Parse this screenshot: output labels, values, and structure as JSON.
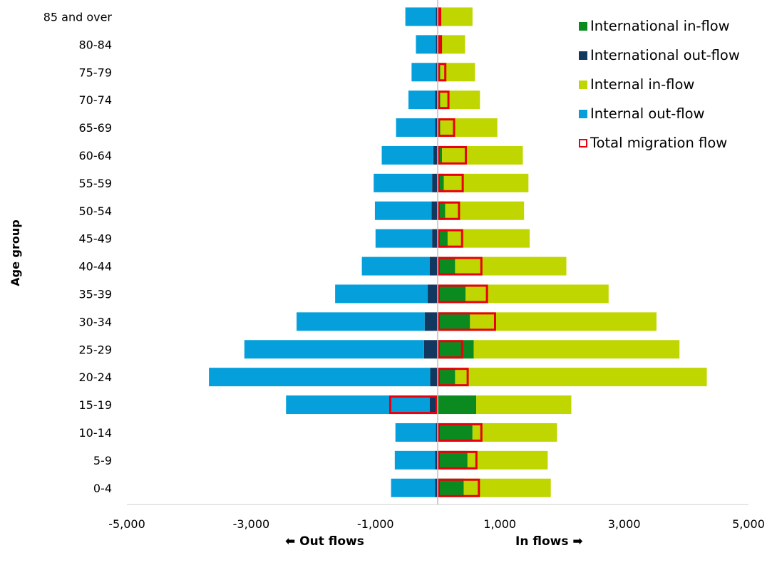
{
  "chart_data": {
    "type": "bar",
    "orientation": "horizontal",
    "ylabel": "Age group",
    "categories": [
      "85 and over",
      "80-84",
      "75-79",
      "70-74",
      "65-69",
      "60-64",
      "55-59",
      "50-54",
      "45-49",
      "40-44",
      "35-39",
      "30-34",
      "25-29",
      "20-24",
      "15-19",
      "10-14",
      "5-9",
      "0-4"
    ],
    "xlim": [
      -5000,
      5000
    ],
    "xticks": [
      "-5,000",
      "-3,000",
      "-1,000",
      "1,000",
      "3,000",
      "5,000"
    ],
    "xtick_values": [
      -5000,
      -3000,
      -1000,
      1000,
      3000,
      5000
    ],
    "out_flows_label": "⬅ Out flows",
    "in_flows_label": "In flows ➡",
    "legend_position": "top-right",
    "series": [
      {
        "name": "International in-flow",
        "color": "#0b8a1f",
        "values": [
          30,
          40,
          40,
          40,
          40,
          70,
          100,
          120,
          160,
          280,
          450,
          520,
          580,
          280,
          620,
          560,
          480,
          420
        ]
      },
      {
        "name": "International out-flow",
        "color": "#13385f",
        "values": [
          -30,
          -30,
          -30,
          -40,
          -40,
          -70,
          -90,
          -100,
          -90,
          -130,
          -160,
          -210,
          -220,
          -120,
          -130,
          -30,
          -40,
          -40
        ]
      },
      {
        "name": "Internal in-flow",
        "color": "#bfd600",
        "values": [
          530,
          400,
          560,
          640,
          920,
          1300,
          1360,
          1270,
          1320,
          1790,
          2300,
          3000,
          3310,
          4050,
          1530,
          1360,
          1290,
          1400
        ]
      },
      {
        "name": "Internal out-flow",
        "color": "#05a0dc",
        "values": [
          -490,
          -320,
          -390,
          -430,
          -630,
          -830,
          -940,
          -910,
          -910,
          -1090,
          -1490,
          -2060,
          -2890,
          -3560,
          -2310,
          -650,
          -650,
          -710
        ]
      },
      {
        "name": "Total migration flow",
        "color": "#e8000c",
        "values": [
          50,
          70,
          140,
          190,
          280,
          470,
          420,
          360,
          410,
          720,
          810,
          940,
          410,
          500,
          -780,
          720,
          640,
          680
        ]
      }
    ]
  }
}
